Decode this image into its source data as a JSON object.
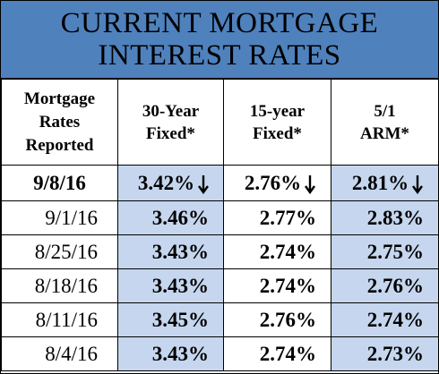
{
  "title": {
    "line1": "CURRENT MORTGAGE",
    "line2": "INTEREST RATES"
  },
  "colors": {
    "header_blue": "#4f81bd",
    "cell_shade": "#c5d6ee"
  },
  "table": {
    "headers": [
      [
        "Mortgage",
        "Rates",
        "Reported"
      ],
      [
        "30-Year",
        "Fixed*"
      ],
      [
        "15-year",
        "Fixed*"
      ],
      [
        "5/1",
        "ARM*"
      ]
    ],
    "current": {
      "date": "9/8/16",
      "rate_30": "3.42%",
      "rate_15": "2.76%",
      "rate_arm": "2.81%",
      "trend_icon": "down-arrow-icon"
    },
    "rows": [
      {
        "date": "9/1/16",
        "rate_30": "3.46%",
        "rate_15": "2.77%",
        "rate_arm": "2.83%"
      },
      {
        "date": "8/25/16",
        "rate_30": "3.43%",
        "rate_15": "2.74%",
        "rate_arm": "2.75%"
      },
      {
        "date": "8/18/16",
        "rate_30": "3.43%",
        "rate_15": "2.74%",
        "rate_arm": "2.76%"
      },
      {
        "date": "8/11/16",
        "rate_30": "3.45%",
        "rate_15": "2.76%",
        "rate_arm": "2.74%"
      },
      {
        "date": "8/4/16",
        "rate_30": "3.43%",
        "rate_15": "2.74%",
        "rate_arm": "2.73%"
      }
    ]
  }
}
